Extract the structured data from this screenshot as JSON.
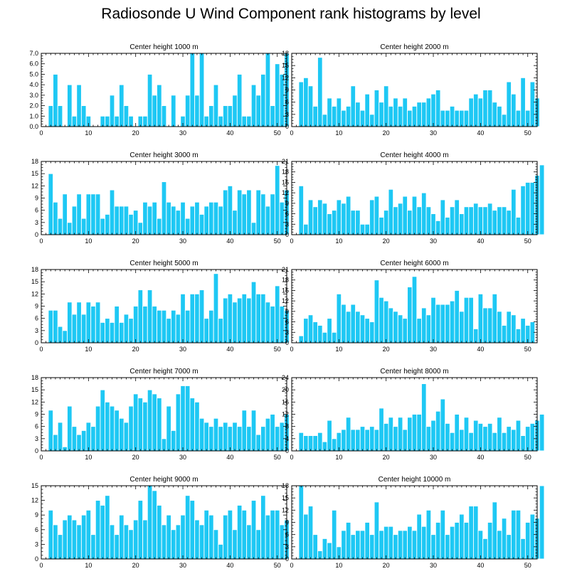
{
  "title": "Radiosonde U Wind Component rank histograms by level",
  "colors": {
    "bar": "#1ec8f4",
    "bar_edge": "#ffffff",
    "axis": "#000000"
  },
  "chart_data": [
    {
      "type": "bar",
      "title": "Center height 1000 m",
      "xlim": [
        0,
        52
      ],
      "ylim": [
        0,
        7
      ],
      "xticks": [
        0,
        10,
        20,
        30,
        40,
        50
      ],
      "yticks": [
        0,
        1,
        2,
        3,
        4,
        5,
        6,
        7
      ],
      "ytick_labels": [
        "0.0",
        "1.0",
        "2.0",
        "3.0",
        "4.0",
        "5.0",
        "6.0",
        "7.0"
      ],
      "values": [
        0,
        2,
        5,
        2,
        0,
        4,
        1,
        4,
        2,
        1,
        0,
        0,
        1,
        1,
        3,
        1,
        4,
        2,
        1,
        0,
        1,
        1,
        5,
        3,
        4,
        2,
        0,
        3,
        0,
        1,
        3,
        7,
        3,
        7,
        1,
        2,
        4,
        1,
        2,
        2,
        3,
        5,
        1,
        1,
        4,
        3,
        5,
        7,
        2,
        6,
        5,
        7
      ]
    },
    {
      "type": "bar",
      "title": "Center height 2000 m",
      "xlim": [
        0,
        52
      ],
      "ylim": [
        0,
        18
      ],
      "xticks": [
        0,
        10,
        20,
        30,
        40,
        50
      ],
      "yticks": [
        0,
        3,
        6,
        9,
        12,
        15,
        18
      ],
      "ytick_labels": [
        "0",
        "3",
        "6",
        "9",
        "12",
        "15",
        "18"
      ],
      "values": [
        0,
        11,
        12,
        10,
        5,
        17,
        3,
        7,
        5,
        7,
        4,
        5,
        10,
        6,
        4,
        8,
        3,
        9,
        6,
        10,
        5,
        7,
        5,
        7,
        4,
        5,
        6,
        6,
        7,
        8,
        9,
        4,
        4,
        5,
        4,
        4,
        4,
        7,
        8,
        7,
        9,
        9,
        6,
        5,
        3,
        11,
        8,
        4,
        12,
        4,
        11,
        7
      ]
    },
    {
      "type": "bar",
      "title": "Center height 3000 m",
      "xlim": [
        0,
        52
      ],
      "ylim": [
        0,
        18
      ],
      "xticks": [
        0,
        10,
        20,
        30,
        40,
        50
      ],
      "yticks": [
        0,
        3,
        6,
        9,
        12,
        15,
        18
      ],
      "ytick_labels": [
        "0",
        "3",
        "6",
        "9",
        "12",
        "15",
        "18"
      ],
      "values": [
        0,
        15,
        8,
        4,
        10,
        3,
        7,
        10,
        4,
        10,
        10,
        10,
        4,
        5,
        11,
        7,
        7,
        7,
        5,
        6,
        3,
        8,
        7,
        8,
        4,
        13,
        8,
        7,
        6,
        8,
        4,
        7,
        8,
        5,
        7,
        8,
        8,
        7,
        11,
        12,
        6,
        11,
        10,
        11,
        3,
        11,
        10,
        7,
        10,
        17,
        8,
        11
      ]
    },
    {
      "type": "bar",
      "title": "Center height 4000 m",
      "xlim": [
        0,
        52
      ],
      "ylim": [
        0,
        21
      ],
      "xticks": [
        0,
        10,
        20,
        30,
        40,
        50
      ],
      "yticks": [
        0,
        3,
        6,
        9,
        12,
        15,
        18,
        21
      ],
      "ytick_labels": [
        "0",
        "3",
        "6",
        "9",
        "12",
        "15",
        "18",
        "21"
      ],
      "values": [
        0,
        14,
        3,
        10,
        8,
        10,
        9,
        6,
        7,
        10,
        9,
        11,
        7,
        7,
        3,
        3,
        10,
        11,
        5,
        7,
        13,
        8,
        9,
        11,
        7,
        11,
        8,
        12,
        8,
        6,
        4,
        10,
        5,
        8,
        10,
        6,
        8,
        8,
        9,
        8,
        8,
        9,
        7,
        8,
        8,
        7,
        13,
        5,
        14,
        15,
        15,
        17,
        20
      ]
    },
    {
      "type": "bar",
      "title": "Center height 5000 m",
      "xlim": [
        0,
        52
      ],
      "ylim": [
        0,
        18
      ],
      "xticks": [
        0,
        10,
        20,
        30,
        40,
        50
      ],
      "yticks": [
        0,
        3,
        6,
        9,
        12,
        15,
        18
      ],
      "ytick_labels": [
        "0",
        "3",
        "6",
        "9",
        "12",
        "15",
        "18"
      ],
      "values": [
        0,
        8,
        8,
        4,
        3,
        10,
        7,
        10,
        7,
        10,
        9,
        10,
        5,
        6,
        5,
        9,
        5,
        7,
        6,
        9,
        13,
        9,
        13,
        9,
        8,
        8,
        6,
        8,
        7,
        12,
        8,
        12,
        12,
        13,
        6,
        8,
        17,
        6,
        11,
        12,
        10,
        11,
        12,
        11,
        15,
        12,
        12,
        10,
        9,
        14,
        9,
        8
      ]
    },
    {
      "type": "bar",
      "title": "Center height 6000 m",
      "xlim": [
        0,
        52
      ],
      "ylim": [
        0,
        21
      ],
      "xticks": [
        0,
        10,
        20,
        30,
        40,
        50
      ],
      "yticks": [
        0,
        3,
        6,
        9,
        12,
        15,
        18,
        21
      ],
      "ytick_labels": [
        "0",
        "3",
        "6",
        "9",
        "12",
        "15",
        "18",
        "21"
      ],
      "values": [
        0,
        2,
        7,
        8,
        6,
        5,
        3,
        7,
        3,
        14,
        11,
        9,
        11,
        9,
        8,
        7,
        6,
        18,
        13,
        12,
        10,
        9,
        8,
        7,
        16,
        19,
        7,
        10,
        8,
        13,
        11,
        11,
        11,
        12,
        15,
        9,
        13,
        13,
        4,
        14,
        10,
        10,
        14,
        9,
        5,
        9,
        8,
        4,
        7,
        5,
        6
      ]
    },
    {
      "type": "bar",
      "title": "Center height 7000 m",
      "xlim": [
        0,
        52
      ],
      "ylim": [
        0,
        18
      ],
      "xticks": [
        0,
        10,
        20,
        30,
        40,
        50
      ],
      "yticks": [
        0,
        3,
        6,
        9,
        12,
        15,
        18
      ],
      "ytick_labels": [
        "0",
        "3",
        "6",
        "9",
        "12",
        "15",
        "18"
      ],
      "values": [
        0,
        10,
        4,
        7,
        1,
        11,
        6,
        4,
        5,
        7,
        6,
        11,
        15,
        12,
        11,
        10,
        8,
        7,
        11,
        14,
        13,
        12,
        15,
        14,
        13,
        3,
        11,
        5,
        14,
        16,
        16,
        13,
        12,
        8,
        7,
        6,
        8,
        6,
        7,
        6,
        7,
        6,
        10,
        6,
        10,
        4,
        6,
        8,
        9,
        6,
        7,
        9
      ]
    },
    {
      "type": "bar",
      "title": "Center height 8000 m",
      "xlim": [
        0,
        52
      ],
      "ylim": [
        0,
        24
      ],
      "xticks": [
        0,
        10,
        20,
        30,
        40,
        50
      ],
      "yticks": [
        0,
        4,
        8,
        12,
        16,
        20,
        24
      ],
      "ytick_labels": [
        "0",
        "4",
        "8",
        "12",
        "16",
        "20",
        "24"
      ],
      "values": [
        0,
        6,
        5,
        5,
        5,
        6,
        3,
        10,
        4,
        6,
        7,
        11,
        7,
        7,
        8,
        7,
        8,
        7,
        14,
        9,
        11,
        8,
        11,
        7,
        11,
        12,
        12,
        22,
        8,
        10,
        13,
        17,
        9,
        6,
        12,
        7,
        11,
        6,
        10,
        9,
        8,
        9,
        6,
        11,
        6,
        8,
        7,
        10,
        5,
        8,
        9,
        10,
        12
      ]
    },
    {
      "type": "bar",
      "title": "Center height 9000 m",
      "xlim": [
        0,
        52
      ],
      "ylim": [
        0,
        15
      ],
      "xticks": [
        0,
        10,
        20,
        30,
        40,
        50
      ],
      "yticks": [
        0,
        3,
        6,
        9,
        12,
        15
      ],
      "ytick_labels": [
        "0",
        "3",
        "6",
        "9",
        "12",
        "15"
      ],
      "values": [
        0,
        10,
        7,
        5,
        8,
        9,
        8,
        7,
        9,
        10,
        5,
        12,
        11,
        13,
        7,
        5,
        9,
        7,
        6,
        8,
        12,
        8,
        15,
        14,
        11,
        7,
        9,
        6,
        7,
        9,
        13,
        12,
        8,
        7,
        10,
        9,
        6,
        3,
        9,
        10,
        6,
        11,
        10,
        7,
        12,
        6,
        13,
        9,
        10,
        10,
        7,
        8
      ]
    },
    {
      "type": "bar",
      "title": "Center height 10000 m",
      "xlim": [
        0,
        52
      ],
      "ylim": [
        0,
        18
      ],
      "xticks": [
        0,
        10,
        20,
        30,
        40,
        50
      ],
      "yticks": [
        0,
        3,
        6,
        9,
        12,
        15,
        18
      ],
      "ytick_labels": [
        "0",
        "3",
        "6",
        "9",
        "12",
        "15",
        "18"
      ],
      "values": [
        0,
        18,
        11,
        13,
        6,
        2,
        5,
        4,
        12,
        3,
        7,
        9,
        6,
        7,
        7,
        9,
        6,
        14,
        7,
        8,
        8,
        6,
        7,
        7,
        8,
        7,
        11,
        8,
        12,
        6,
        9,
        12,
        6,
        8,
        9,
        11,
        9,
        13,
        13,
        7,
        5,
        9,
        14,
        7,
        10,
        6,
        12,
        12,
        5,
        9,
        11,
        10,
        18
      ]
    }
  ]
}
